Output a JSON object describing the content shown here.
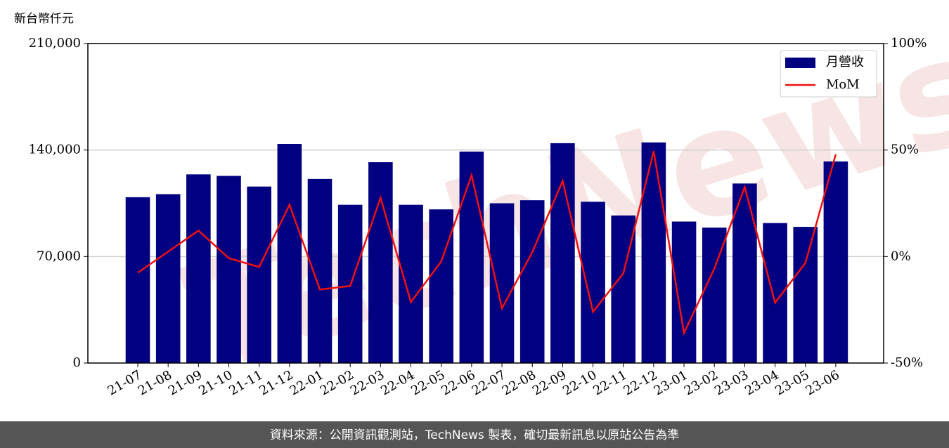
{
  "chart_data": {
    "type": "bar-line",
    "y_label": "新台幣仟元",
    "watermark": "TechNews",
    "categories": [
      "21-07",
      "21-08",
      "21-09",
      "21-10",
      "21-11",
      "21-12",
      "22-01",
      "22-02",
      "22-03",
      "22-04",
      "22-05",
      "22-06",
      "22-07",
      "22-08",
      "22-09",
      "22-10",
      "22-11",
      "22-12",
      "23-01",
      "23-02",
      "23-03",
      "23-04",
      "23-05",
      "23-06"
    ],
    "series": [
      {
        "name": "月營收",
        "type": "bar",
        "color": "#000080",
        "values": [
          109000,
          111000,
          124000,
          123000,
          116000,
          144000,
          121000,
          104000,
          132000,
          104000,
          101000,
          139000,
          105000,
          107000,
          144500,
          106000,
          97000,
          145000,
          93000,
          89000,
          118000,
          92000,
          89500,
          132500
        ]
      },
      {
        "name": "MoM",
        "type": "line",
        "axis": "y2",
        "color": "#ee1111",
        "values": [
          -7.6,
          2.3,
          12.2,
          -0.8,
          -4.9,
          24.3,
          -15.5,
          -13.8,
          27.6,
          -21.4,
          -2.3,
          38.2,
          -24.3,
          2.0,
          35.5,
          -26.0,
          -7.9,
          49.5,
          -35.9,
          -5.6,
          32.6,
          -21.7,
          -3.0,
          48.0
        ]
      }
    ],
    "ylim": [
      0,
      210000
    ],
    "yticks": [
      {
        "value": 0,
        "label": "0"
      },
      {
        "value": 70000,
        "label": "70,000"
      },
      {
        "value": 140000,
        "label": "140,000"
      },
      {
        "value": 210000,
        "label": "210,000"
      }
    ],
    "y2lim": [
      -50,
      100
    ],
    "y2ticks": [
      {
        "value": -50,
        "label": "-50%"
      },
      {
        "value": 0,
        "label": "0%"
      },
      {
        "value": 50,
        "label": "50%"
      },
      {
        "value": 100,
        "label": "100%"
      }
    ],
    "grid": true,
    "legend": "upper right",
    "footer": "資料來源：公開資訊觀測站，TechNews 製表，確切最新訊息以原站公告為準"
  }
}
